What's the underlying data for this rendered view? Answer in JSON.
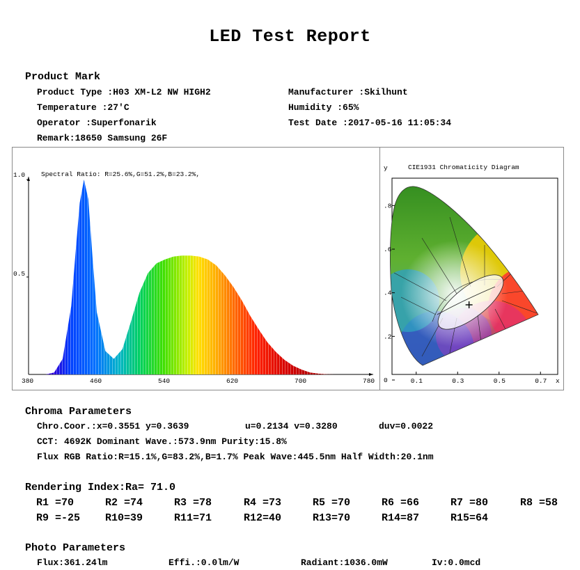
{
  "title": "LED Test Report",
  "product": {
    "heading": "Product Mark",
    "type": "Product Type :H03 XM-L2 NW HIGH2",
    "manufacturer": "Manufacturer :Skilhunt",
    "temperature": "Temperature :27'C",
    "humidity": "Humidity :65%",
    "operator": "Operator :Superfonarik",
    "test_date": "Test Date :2017-05-16 11:05:34",
    "remark": "Remark:18650 Samsung 26F"
  },
  "spectrum": {
    "ratio_text": "Spectral Ratio:  R=25.6%,G=51.2%,B=23.2%,",
    "y_labels": [
      "1.0",
      "0.5"
    ],
    "x_labels": [
      "380",
      "460",
      "540",
      "620",
      "700",
      "780"
    ]
  },
  "cie": {
    "title": "CIE1931 Chromaticity Diagram",
    "y_axis": "y",
    "x_axis": "x",
    "y_ticks": [
      ".8",
      ".6",
      ".4",
      ".2",
      "0"
    ],
    "x_ticks": [
      "0.1",
      "0.3",
      "0.5",
      "0.7"
    ],
    "point": {
      "x": 0.3551,
      "y": 0.3639
    }
  },
  "chart_data": [
    {
      "type": "area",
      "x": [
        380,
        400,
        410,
        420,
        430,
        435,
        440,
        445,
        450,
        455,
        460,
        470,
        480,
        490,
        500,
        510,
        520,
        530,
        540,
        550,
        560,
        570,
        580,
        590,
        600,
        610,
        620,
        630,
        640,
        650,
        660,
        670,
        680,
        690,
        700,
        710,
        720,
        730,
        740,
        760,
        780
      ],
      "y": [
        0,
        0,
        0.01,
        0.08,
        0.35,
        0.62,
        0.88,
        1.0,
        0.9,
        0.6,
        0.32,
        0.12,
        0.08,
        0.13,
        0.27,
        0.42,
        0.52,
        0.57,
        0.59,
        0.605,
        0.61,
        0.61,
        0.605,
        0.59,
        0.56,
        0.51,
        0.45,
        0.38,
        0.3,
        0.23,
        0.165,
        0.115,
        0.075,
        0.045,
        0.025,
        0.01,
        0.004,
        0.001,
        0,
        0,
        0
      ],
      "xlim": [
        380,
        780
      ],
      "ylim": [
        0,
        1.0
      ]
    },
    {
      "type": "scatter",
      "x": [
        0.3551
      ],
      "y": [
        0.3639
      ],
      "xlim": [
        0,
        0.8
      ],
      "ylim": [
        0,
        0.9
      ]
    }
  ],
  "chroma": {
    "heading": "Chroma Parameters",
    "line1_coord": "Chro.Coor.:x=0.3551  y=0.3639",
    "line1_uv": "u=0.2134  v=0.3280",
    "line1_duv": "duv=0.0022",
    "line2": "CCT: 4692K   Dominant Wave.:573.9nm   Purity:15.8%",
    "line3": "Flux RGB Ratio:R=15.1%,G=83.2%,B=1.7%   Peak Wave:445.5nm   Half Width:20.1nm"
  },
  "rendering": {
    "heading": "Rendering Index:Ra= 71.0",
    "row1": [
      "R1 =70",
      "R2 =74",
      "R3 =78",
      "R4 =73",
      "R5 =70",
      "R6 =66",
      "R7 =80",
      "R8 =58"
    ],
    "row2": [
      "R9 =-25",
      "R10=39",
      "R11=71",
      "R12=40",
      "R13=70",
      "R14=87",
      "R15=64"
    ]
  },
  "photo": {
    "heading": "Photo Parameters",
    "flux": "Flux:361.24lm",
    "effi": "Effi.:0.0lm/W",
    "radiant": "Radiant:1036.0mW",
    "iv": "Iv:0.0mcd"
  }
}
